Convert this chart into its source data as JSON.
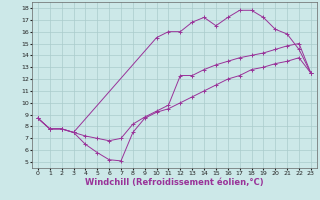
{
  "xlabel": "Windchill (Refroidissement éolien,°C)",
  "bg_color": "#cce8e8",
  "grid_color": "#aacccc",
  "line_color": "#993399",
  "xlim": [
    -0.5,
    23.5
  ],
  "ylim": [
    4.5,
    18.5
  ],
  "xticks": [
    0,
    1,
    2,
    3,
    4,
    5,
    6,
    7,
    8,
    9,
    10,
    11,
    12,
    13,
    14,
    15,
    16,
    17,
    18,
    19,
    20,
    21,
    22,
    23
  ],
  "yticks": [
    5,
    6,
    7,
    8,
    9,
    10,
    11,
    12,
    13,
    14,
    15,
    16,
    17,
    18
  ],
  "line1_x": [
    0,
    1,
    2,
    3,
    4,
    5,
    6,
    7,
    8,
    9,
    10,
    11,
    12,
    13,
    14,
    15,
    16,
    17,
    18,
    19,
    20,
    21,
    22,
    23
  ],
  "line1_y": [
    8.7,
    7.8,
    7.8,
    7.5,
    6.5,
    5.8,
    5.2,
    5.1,
    7.5,
    8.7,
    9.2,
    9.5,
    10.0,
    10.5,
    11.0,
    11.5,
    12.0,
    12.3,
    12.8,
    13.0,
    13.3,
    13.5,
    13.8,
    12.5
  ],
  "line2_x": [
    0,
    1,
    2,
    3,
    4,
    5,
    6,
    7,
    8,
    9,
    10,
    11,
    12,
    13,
    14,
    15,
    16,
    17,
    18,
    19,
    20,
    21,
    22,
    23
  ],
  "line2_y": [
    8.7,
    7.8,
    7.8,
    7.5,
    7.2,
    7.0,
    6.8,
    7.0,
    8.2,
    8.8,
    9.3,
    9.8,
    12.3,
    12.3,
    12.8,
    13.2,
    13.5,
    13.8,
    14.0,
    14.2,
    14.5,
    14.8,
    15.0,
    12.5
  ],
  "line3_x": [
    0,
    1,
    2,
    3,
    10,
    11,
    12,
    13,
    14,
    15,
    16,
    17,
    18,
    19,
    20,
    21,
    22,
    23
  ],
  "line3_y": [
    8.7,
    7.8,
    7.8,
    7.5,
    15.5,
    16.0,
    16.0,
    16.8,
    17.2,
    16.5,
    17.2,
    17.8,
    17.8,
    17.2,
    16.2,
    15.8,
    14.5,
    12.5
  ],
  "tick_fontsize": 4.5,
  "xlabel_fontsize": 6.0,
  "lw": 0.7,
  "ms": 2.5,
  "mew": 0.7
}
